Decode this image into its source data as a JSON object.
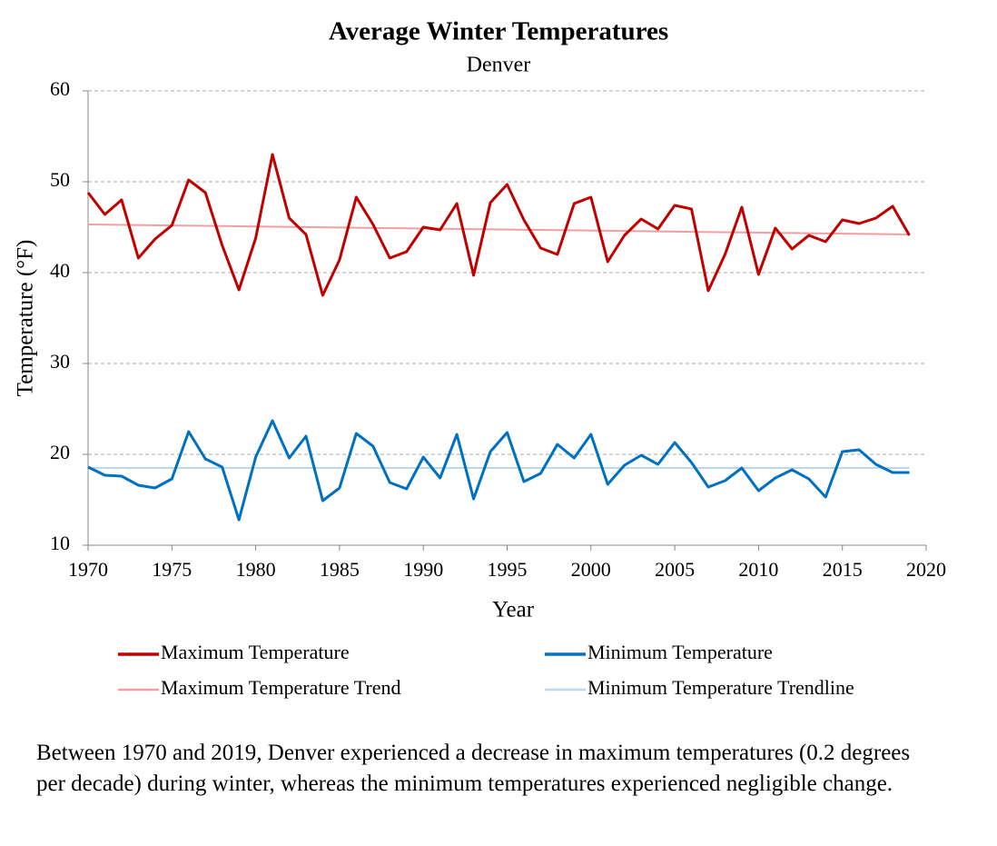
{
  "chart_data": {
    "type": "line",
    "title": "Average Winter Temperatures",
    "subtitle": "Denver",
    "x_label": "Year",
    "y_label": "Temperature (°F)",
    "x": [
      1970,
      1971,
      1972,
      1973,
      1974,
      1975,
      1976,
      1977,
      1978,
      1979,
      1980,
      1981,
      1982,
      1983,
      1984,
      1985,
      1986,
      1987,
      1988,
      1989,
      1990,
      1991,
      1992,
      1993,
      1994,
      1995,
      1996,
      1997,
      1998,
      1999,
      2000,
      2001,
      2002,
      2003,
      2004,
      2005,
      2006,
      2007,
      2008,
      2009,
      2010,
      2011,
      2012,
      2013,
      2014,
      2015,
      2016,
      2017,
      2018,
      2019
    ],
    "series": [
      {
        "name": "Maximum Temperature",
        "color": "#c00000",
        "width": 3,
        "values": [
          48.8,
          46.4,
          48.0,
          41.6,
          43.7,
          45.2,
          50.2,
          48.8,
          43.0,
          38.1,
          43.8,
          53.0,
          46.0,
          44.2,
          37.5,
          41.4,
          48.3,
          45.3,
          41.6,
          42.3,
          45.0,
          44.7,
          47.6,
          39.7,
          47.7,
          49.7,
          45.8,
          42.7,
          42.0,
          47.6,
          48.3,
          41.2,
          44.1,
          45.9,
          44.8,
          47.4,
          47.0,
          38.0,
          42.0,
          47.2,
          39.8,
          44.9,
          42.6,
          44.1,
          43.4,
          45.8,
          45.4,
          46.0,
          47.3,
          44.1
        ]
      },
      {
        "name": "Minimum Temperature",
        "color": "#0070c0",
        "width": 3,
        "values": [
          18.6,
          17.7,
          17.6,
          16.6,
          16.3,
          17.3,
          22.5,
          19.5,
          18.6,
          12.8,
          19.7,
          23.7,
          19.6,
          22.0,
          14.9,
          16.3,
          22.3,
          20.9,
          16.9,
          16.2,
          19.7,
          17.4,
          22.2,
          15.1,
          20.3,
          22.4,
          17.0,
          17.9,
          21.1,
          19.6,
          22.2,
          16.7,
          18.8,
          19.9,
          18.9,
          21.3,
          19.1,
          16.4,
          17.1,
          18.5,
          16.0,
          17.4,
          18.3,
          17.3,
          15.3,
          20.3,
          20.5,
          18.9,
          18.0,
          18.0
        ]
      },
      {
        "name": "Maximum Temperature Trend",
        "color": "#f0a0a0",
        "width": 2,
        "x": [
          1970,
          2019
        ],
        "values": [
          45.3,
          44.2
        ]
      },
      {
        "name": "Minimum Temperature Trendline",
        "color": "#bcd8ec",
        "width": 2,
        "x": [
          1970,
          2019
        ],
        "values": [
          18.5,
          18.5
        ]
      }
    ],
    "xlim": [
      1970,
      2020
    ],
    "xticks": [
      1970,
      1975,
      1980,
      1985,
      1990,
      1995,
      2000,
      2005,
      2010,
      2015,
      2020
    ],
    "ylim": [
      10,
      60
    ],
    "yticks": [
      10,
      20,
      30,
      40,
      50,
      60
    ],
    "grid": true,
    "note": "Between 1970 and 2019, Denver experienced a decrease in maximum temperatures (0.2 degrees per decade) during winter, whereas the minimum temperatures experienced negligible change."
  }
}
